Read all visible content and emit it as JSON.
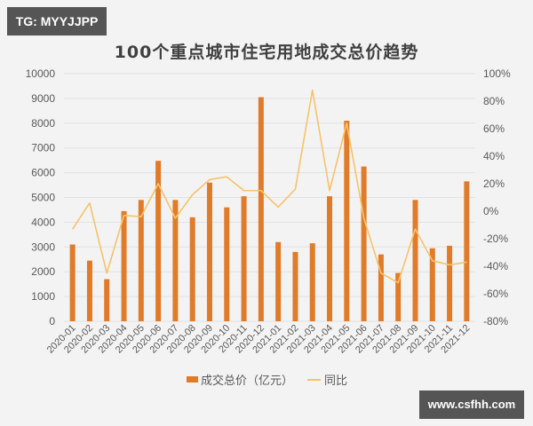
{
  "watermarks": {
    "top_left": "TG: MYYJJPP",
    "bottom_right": "www.csfhh.com"
  },
  "colors": {
    "bar": "#e07b2a",
    "line": "#f5c36a",
    "grid": "#e2e2e2",
    "background": "#f3f3f3"
  },
  "legend": {
    "bar_label": "成交总价（亿元）",
    "line_label": "同比"
  },
  "chart_data": {
    "type": "bar",
    "title": "100个重点城市住宅用地成交总价趋势",
    "xlabel": "",
    "ylabel": "",
    "categories": [
      "2020-01",
      "2020-02",
      "2020-03",
      "2020-04",
      "2020-05",
      "2020-06",
      "2020-07",
      "2020-08",
      "2020-09",
      "2020-10",
      "2020-11",
      "2020-12",
      "2021-01",
      "2021-02",
      "2021-03",
      "2021-04",
      "2021-05",
      "2021-06",
      "2021-07",
      "2021-08",
      "2021-09",
      "2021-10",
      "2021-11",
      "2021-12"
    ],
    "series": [
      {
        "name": "成交总价（亿元）",
        "type": "bar",
        "axis": "left",
        "values": [
          3100,
          2450,
          1700,
          4450,
          4900,
          6480,
          4900,
          4200,
          5600,
          4600,
          5050,
          9050,
          3200,
          2800,
          3150,
          5050,
          8100,
          6250,
          2700,
          1950,
          4900,
          2950,
          3050,
          5650
        ]
      },
      {
        "name": "同比",
        "type": "line",
        "axis": "right",
        "unit": "%",
        "values": [
          -13,
          6,
          -45,
          -3,
          -4,
          20,
          -5,
          12,
          23,
          25,
          15,
          15,
          3,
          16,
          88,
          15,
          64,
          -5,
          -45,
          -52,
          -13,
          -36,
          -39,
          -37
        ]
      }
    ],
    "left_axis": {
      "ylim": [
        0,
        10000
      ],
      "ticks": [
        "0",
        "1000",
        "2000",
        "3000",
        "4000",
        "5000",
        "6000",
        "7000",
        "8000",
        "9000",
        "10000"
      ]
    },
    "right_axis": {
      "ylim": [
        -80,
        100
      ],
      "ticks": [
        "-80%",
        "-60%",
        "-40%",
        "-20%",
        "0%",
        "20%",
        "40%",
        "60%",
        "80%",
        "100%"
      ]
    },
    "grid": true,
    "legend_position": "bottom"
  }
}
